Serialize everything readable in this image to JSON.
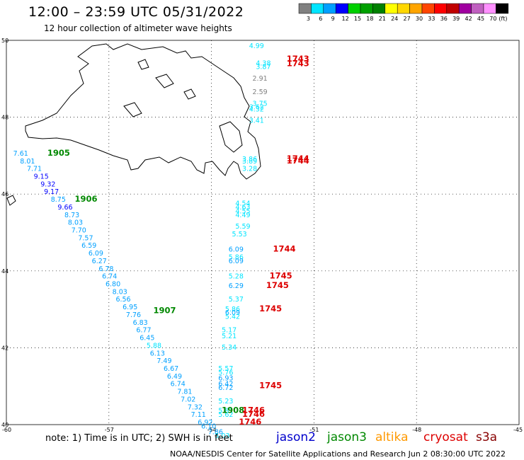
{
  "title": "12:00 – 23:59 UTC 05/31/2022",
  "subtitle": "12 hour collection of altimeter wave heights",
  "note": "note: 1) Time is in UTC; 2) SWH is in feet",
  "credit": "NOAA/NESDIS Center for Satellite Applications and Research   Jun  2 08:30:00 UTC 2022",
  "colorbar": {
    "ticks": [
      "3",
      "6",
      "9",
      "12",
      "15",
      "18",
      "21",
      "24",
      "27",
      "30",
      "33",
      "36",
      "39",
      "42",
      "45",
      "70",
      "(ft)"
    ],
    "colors": [
      "#808080",
      "#00e5ff",
      "#00a0ff",
      "#0000ff",
      "#00d000",
      "#00a000",
      "#008000",
      "#ffff00",
      "#ffd700",
      "#ffa500",
      "#ff4500",
      "#ff0000",
      "#c00000",
      "#a000a0",
      "#c060c0",
      "#ff90ff",
      "#000000"
    ]
  },
  "satellites": [
    {
      "name": "jason2",
      "color": "#0000cc"
    },
    {
      "name": "jason3",
      "color": "#008800"
    },
    {
      "name": "altika",
      "color": "#ff9900"
    },
    {
      "name": "cryosat",
      "color": "#dd0000"
    },
    {
      "name": "s3a",
      "color": "#880000"
    }
  ],
  "axes": {
    "lon": [
      "-60",
      "-57",
      "-54",
      "-51",
      "-48",
      "-45"
    ],
    "lat": [
      "50",
      "48",
      "46",
      "44",
      "42",
      "40"
    ]
  },
  "time_labels": [
    {
      "text": "1905",
      "sat": "jason3",
      "lon": -58.8,
      "lat": 47.0
    },
    {
      "text": "1906",
      "sat": "jason3",
      "lon": -58.0,
      "lat": 45.8
    },
    {
      "text": "1907",
      "sat": "jason3",
      "lon": -55.7,
      "lat": 42.9
    },
    {
      "text": "1908",
      "sat": "jason3",
      "lon": -53.7,
      "lat": 40.3
    },
    {
      "text": "1743",
      "sat": "cryosat",
      "lon": -51.8,
      "lat": 49.45
    },
    {
      "text": "1743",
      "sat": "cryosat",
      "lon": -51.8,
      "lat": 49.33
    },
    {
      "text": "1744",
      "sat": "cryosat",
      "lon": -51.8,
      "lat": 46.85
    },
    {
      "text": "1744",
      "sat": "cryosat",
      "lon": -51.8,
      "lat": 46.8
    },
    {
      "text": "1744",
      "sat": "cryosat",
      "lon": -52.2,
      "lat": 44.5
    },
    {
      "text": "1745",
      "sat": "cryosat",
      "lon": -52.3,
      "lat": 43.8
    },
    {
      "text": "1745",
      "sat": "cryosat",
      "lon": -52.4,
      "lat": 43.55
    },
    {
      "text": "1745",
      "sat": "cryosat",
      "lon": -52.6,
      "lat": 42.95
    },
    {
      "text": "1745",
      "sat": "cryosat",
      "lon": -52.6,
      "lat": 40.95
    },
    {
      "text": "1746",
      "sat": "cryosat",
      "lon": -53.1,
      "lat": 40.3
    },
    {
      "text": "1746",
      "sat": "cryosat",
      "lon": -53.1,
      "lat": 40.2
    },
    {
      "text": "1746",
      "sat": "cryosat",
      "lon": -53.2,
      "lat": 40.0
    }
  ],
  "observations": [
    {
      "swh": "7.61",
      "lon": -59.8,
      "lat": 47.0
    },
    {
      "swh": "8.01",
      "lon": -59.6,
      "lat": 46.8
    },
    {
      "swh": "7.71",
      "lon": -59.4,
      "lat": 46.6
    },
    {
      "swh": "9.15",
      "lon": -59.2,
      "lat": 46.4
    },
    {
      "swh": "9.32",
      "lon": -59.0,
      "lat": 46.2
    },
    {
      "swh": "9.17",
      "lon": -58.9,
      "lat": 46.0
    },
    {
      "swh": "8.75",
      "lon": -58.7,
      "lat": 45.8
    },
    {
      "swh": "9.66",
      "lon": -58.5,
      "lat": 45.6
    },
    {
      "swh": "8.73",
      "lon": -58.3,
      "lat": 45.4
    },
    {
      "swh": "8.03",
      "lon": -58.2,
      "lat": 45.2
    },
    {
      "swh": "7.70",
      "lon": -58.1,
      "lat": 45.0
    },
    {
      "swh": "7.57",
      "lon": -57.9,
      "lat": 44.8
    },
    {
      "swh": "6.59",
      "lon": -57.8,
      "lat": 44.6
    },
    {
      "swh": "6.09",
      "lon": -57.6,
      "lat": 44.4
    },
    {
      "swh": "6.27",
      "lon": -57.5,
      "lat": 44.2
    },
    {
      "swh": "6.78",
      "lon": -57.3,
      "lat": 44.0
    },
    {
      "swh": "6.74",
      "lon": -57.2,
      "lat": 43.8
    },
    {
      "swh": "6.80",
      "lon": -57.1,
      "lat": 43.6
    },
    {
      "swh": "8.03",
      "lon": -56.9,
      "lat": 43.4
    },
    {
      "swh": "6.56",
      "lon": -56.8,
      "lat": 43.2
    },
    {
      "swh": "6.95",
      "lon": -56.6,
      "lat": 43.0
    },
    {
      "swh": "7.76",
      "lon": -56.5,
      "lat": 42.8
    },
    {
      "swh": "6.83",
      "lon": -56.3,
      "lat": 42.6
    },
    {
      "swh": "6.77",
      "lon": -56.2,
      "lat": 42.4
    },
    {
      "swh": "6.45",
      "lon": -56.1,
      "lat": 42.2
    },
    {
      "swh": "5.88",
      "lon": -55.9,
      "lat": 42.0
    },
    {
      "swh": "6.13",
      "lon": -55.8,
      "lat": 41.8
    },
    {
      "swh": "7.49",
      "lon": -55.6,
      "lat": 41.6
    },
    {
      "swh": "6.67",
      "lon": -55.4,
      "lat": 41.4
    },
    {
      "swh": "6.49",
      "lon": -55.3,
      "lat": 41.2
    },
    {
      "swh": "6.74",
      "lon": -55.2,
      "lat": 41.0
    },
    {
      "swh": "7.81",
      "lon": -55.0,
      "lat": 40.8
    },
    {
      "swh": "7.02",
      "lon": -54.9,
      "lat": 40.6
    },
    {
      "swh": "7.32",
      "lon": -54.7,
      "lat": 40.4
    },
    {
      "swh": "7.11",
      "lon": -54.6,
      "lat": 40.2
    },
    {
      "swh": "6.92",
      "lon": -54.4,
      "lat": 40.0
    },
    {
      "swh": "6.10",
      "lon": -54.3,
      "lat": 39.9
    },
    {
      "swh": "7.86",
      "lon": -54.1,
      "lat": 39.75
    },
    {
      "swh": "5.03",
      "lon": -53.9,
      "lat": 39.65
    },
    {
      "swh": "4.99",
      "lon": -52.9,
      "lat": 49.8
    },
    {
      "swh": "4.38",
      "lon": -52.7,
      "lat": 49.35
    },
    {
      "swh": "3.87",
      "lon": -52.7,
      "lat": 49.25
    },
    {
      "swh": "2.91",
      "lon": -52.8,
      "lat": 48.95
    },
    {
      "swh": "2.59",
      "lon": -52.8,
      "lat": 48.6
    },
    {
      "swh": "3.75",
      "lon": -52.8,
      "lat": 48.3
    },
    {
      "swh": "3.62",
      "lon": -52.9,
      "lat": 48.2
    },
    {
      "swh": "4.32",
      "lon": -52.9,
      "lat": 48.15
    },
    {
      "swh": "3.41",
      "lon": -52.9,
      "lat": 47.85
    },
    {
      "swh": "3.86",
      "lon": -53.1,
      "lat": 46.85
    },
    {
      "swh": "3.89",
      "lon": -53.1,
      "lat": 46.8
    },
    {
      "swh": "3.28",
      "lon": -53.1,
      "lat": 46.6
    },
    {
      "swh": "4.54",
      "lon": -53.3,
      "lat": 45.7
    },
    {
      "swh": "4.63",
      "lon": -53.3,
      "lat": 45.6
    },
    {
      "swh": "4.55",
      "lon": -53.3,
      "lat": 45.5
    },
    {
      "swh": "4.49",
      "lon": -53.3,
      "lat": 45.4
    },
    {
      "swh": "5.59",
      "lon": -53.3,
      "lat": 45.1
    },
    {
      "swh": "5.53",
      "lon": -53.4,
      "lat": 44.9
    },
    {
      "swh": "6.09",
      "lon": -53.5,
      "lat": 44.5
    },
    {
      "swh": "5.86",
      "lon": -53.5,
      "lat": 44.3
    },
    {
      "swh": "6.09",
      "lon": -53.5,
      "lat": 44.2
    },
    {
      "swh": "5.28",
      "lon": -53.5,
      "lat": 43.8
    },
    {
      "swh": "6.29",
      "lon": -53.5,
      "lat": 43.55
    },
    {
      "swh": "5.37",
      "lon": -53.5,
      "lat": 43.2
    },
    {
      "swh": "5.86",
      "lon": -53.6,
      "lat": 42.95
    },
    {
      "swh": "6.09",
      "lon": -53.6,
      "lat": 42.85
    },
    {
      "swh": "5.42",
      "lon": -53.6,
      "lat": 42.75
    },
    {
      "swh": "5.17",
      "lon": -53.7,
      "lat": 42.4
    },
    {
      "swh": "5.21",
      "lon": -53.7,
      "lat": 42.25
    },
    {
      "swh": "5.34",
      "lon": -53.7,
      "lat": 41.95
    },
    {
      "swh": "5.57",
      "lon": -53.8,
      "lat": 41.4
    },
    {
      "swh": "5.76",
      "lon": -53.8,
      "lat": 41.3
    },
    {
      "swh": "6.93",
      "lon": -53.8,
      "lat": 41.15
    },
    {
      "swh": "6.42",
      "lon": -53.8,
      "lat": 41.0
    },
    {
      "swh": "6.72",
      "lon": -53.8,
      "lat": 40.9
    },
    {
      "swh": "5.23",
      "lon": -53.8,
      "lat": 40.55
    },
    {
      "swh": "5.81",
      "lon": -53.8,
      "lat": 40.3
    },
    {
      "swh": "5.62",
      "lon": -53.8,
      "lat": 40.2
    }
  ]
}
